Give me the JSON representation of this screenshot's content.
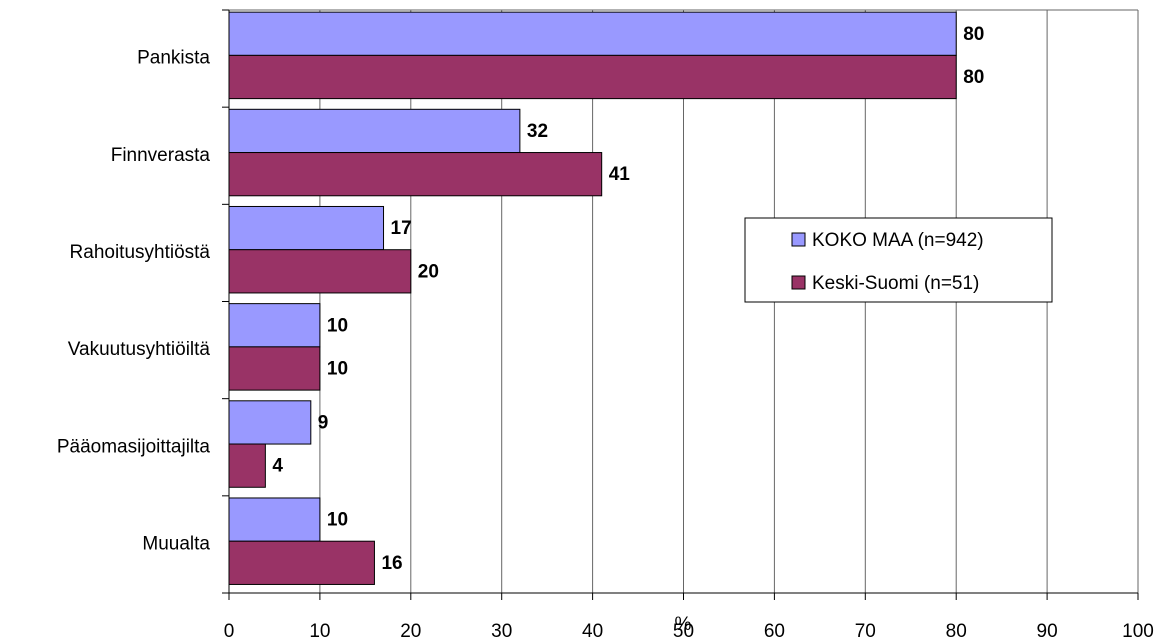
{
  "chart_data": {
    "type": "bar",
    "orientation": "horizontal",
    "categories": [
      "Pankista",
      "Finnverasta",
      "Rahoitusyhtiöstä",
      "Vakuutusyhtiöiltä",
      "Pääomasijoittajilta",
      "Muualta"
    ],
    "series": [
      {
        "name": "KOKO MAA (n=942)",
        "color": "#9999ff",
        "values": [
          80,
          32,
          17,
          10,
          9,
          10
        ]
      },
      {
        "name": "Keski-Suomi (n=51)",
        "color": "#993366",
        "values": [
          80,
          41,
          20,
          10,
          4,
          16
        ]
      }
    ],
    "xlabel": "%",
    "xlim": [
      0,
      100
    ],
    "xticks": [
      0,
      10,
      20,
      30,
      40,
      50,
      60,
      70,
      80,
      90,
      100
    ],
    "grid": true,
    "legend": "right"
  }
}
